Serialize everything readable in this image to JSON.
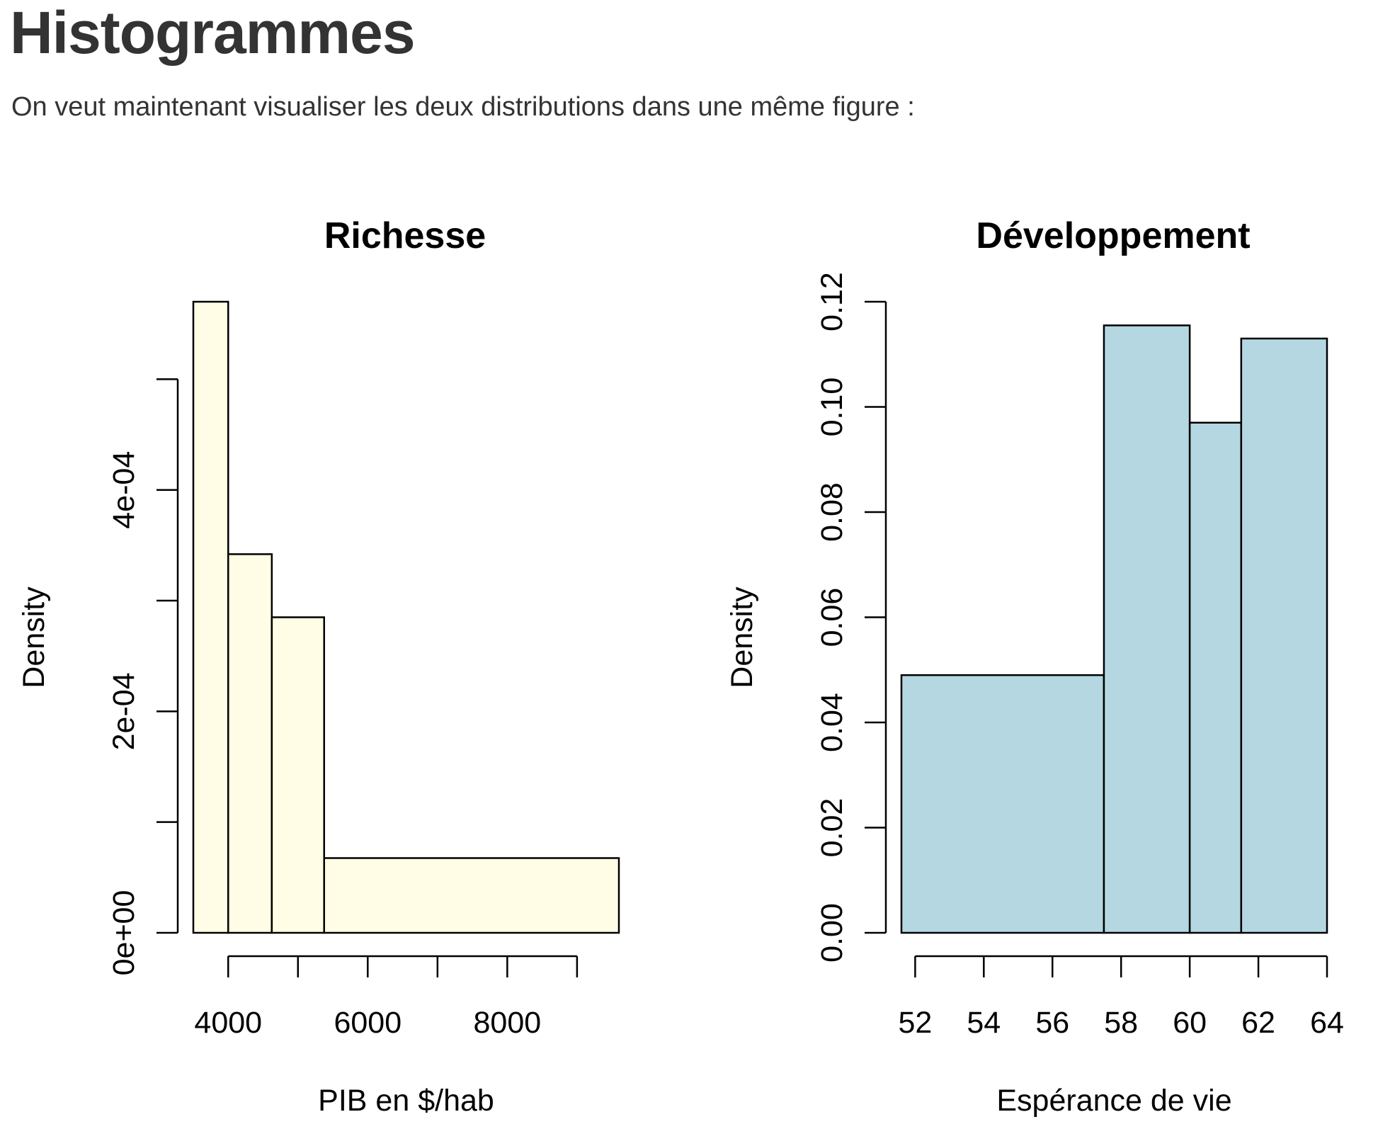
{
  "page": {
    "title": "Histogrammes",
    "intro": "On veut maintenant visualiser les deux distributions dans une même figure :"
  },
  "chart_data": [
    {
      "type": "bar",
      "histogram": true,
      "title": "Richesse",
      "xlabel": "PIB en $/hab",
      "ylabel": "Density",
      "fill": "#fffde6",
      "stroke": "#000000",
      "bins": [
        {
          "x0": 3500,
          "x1": 4000,
          "density": 0.00057
        },
        {
          "x0": 4000,
          "x1": 4625,
          "density": 0.000342
        },
        {
          "x0": 4625,
          "x1": 5375,
          "density": 0.000285
        },
        {
          "x0": 5375,
          "x1": 9600,
          "density": 6.75e-05
        }
      ],
      "xlim": [
        3500,
        9600
      ],
      "xticks": [
        4000,
        5000,
        6000,
        7000,
        8000,
        9000
      ],
      "xtick_labels": [
        "4000",
        "",
        "6000",
        "",
        "8000",
        ""
      ],
      "ylim": [
        0,
        0.00057
      ],
      "yticks": [
        0,
        0.0001,
        0.0002,
        0.0003,
        0.0004,
        0.0005
      ],
      "ytick_labels": [
        "0e+00",
        "",
        "2e-04",
        "",
        "4e-04",
        ""
      ],
      "grid": false
    },
    {
      "type": "bar",
      "histogram": true,
      "title": "Développement",
      "xlabel": "Espérance de vie",
      "ylabel": "Density",
      "fill": "#b5d7e2",
      "stroke": "#000000",
      "bins": [
        {
          "x0": 51.6,
          "x1": 57.5,
          "density": 0.049
        },
        {
          "x0": 57.5,
          "x1": 60.0,
          "density": 0.1155
        },
        {
          "x0": 60.0,
          "x1": 61.5,
          "density": 0.097
        },
        {
          "x0": 61.5,
          "x1": 64.0,
          "density": 0.113
        }
      ],
      "xlim": [
        51.6,
        64
      ],
      "xticks": [
        52,
        54,
        56,
        58,
        60,
        62,
        64
      ],
      "xtick_labels": [
        "52",
        "54",
        "56",
        "58",
        "60",
        "62",
        "64"
      ],
      "ylim": [
        0,
        0.12
      ],
      "yticks": [
        0,
        0.02,
        0.04,
        0.06,
        0.08,
        0.1,
        0.12
      ],
      "ytick_labels": [
        "0.00",
        "0.02",
        "0.04",
        "0.06",
        "0.08",
        "0.10",
        "0.12"
      ],
      "grid": false
    }
  ]
}
